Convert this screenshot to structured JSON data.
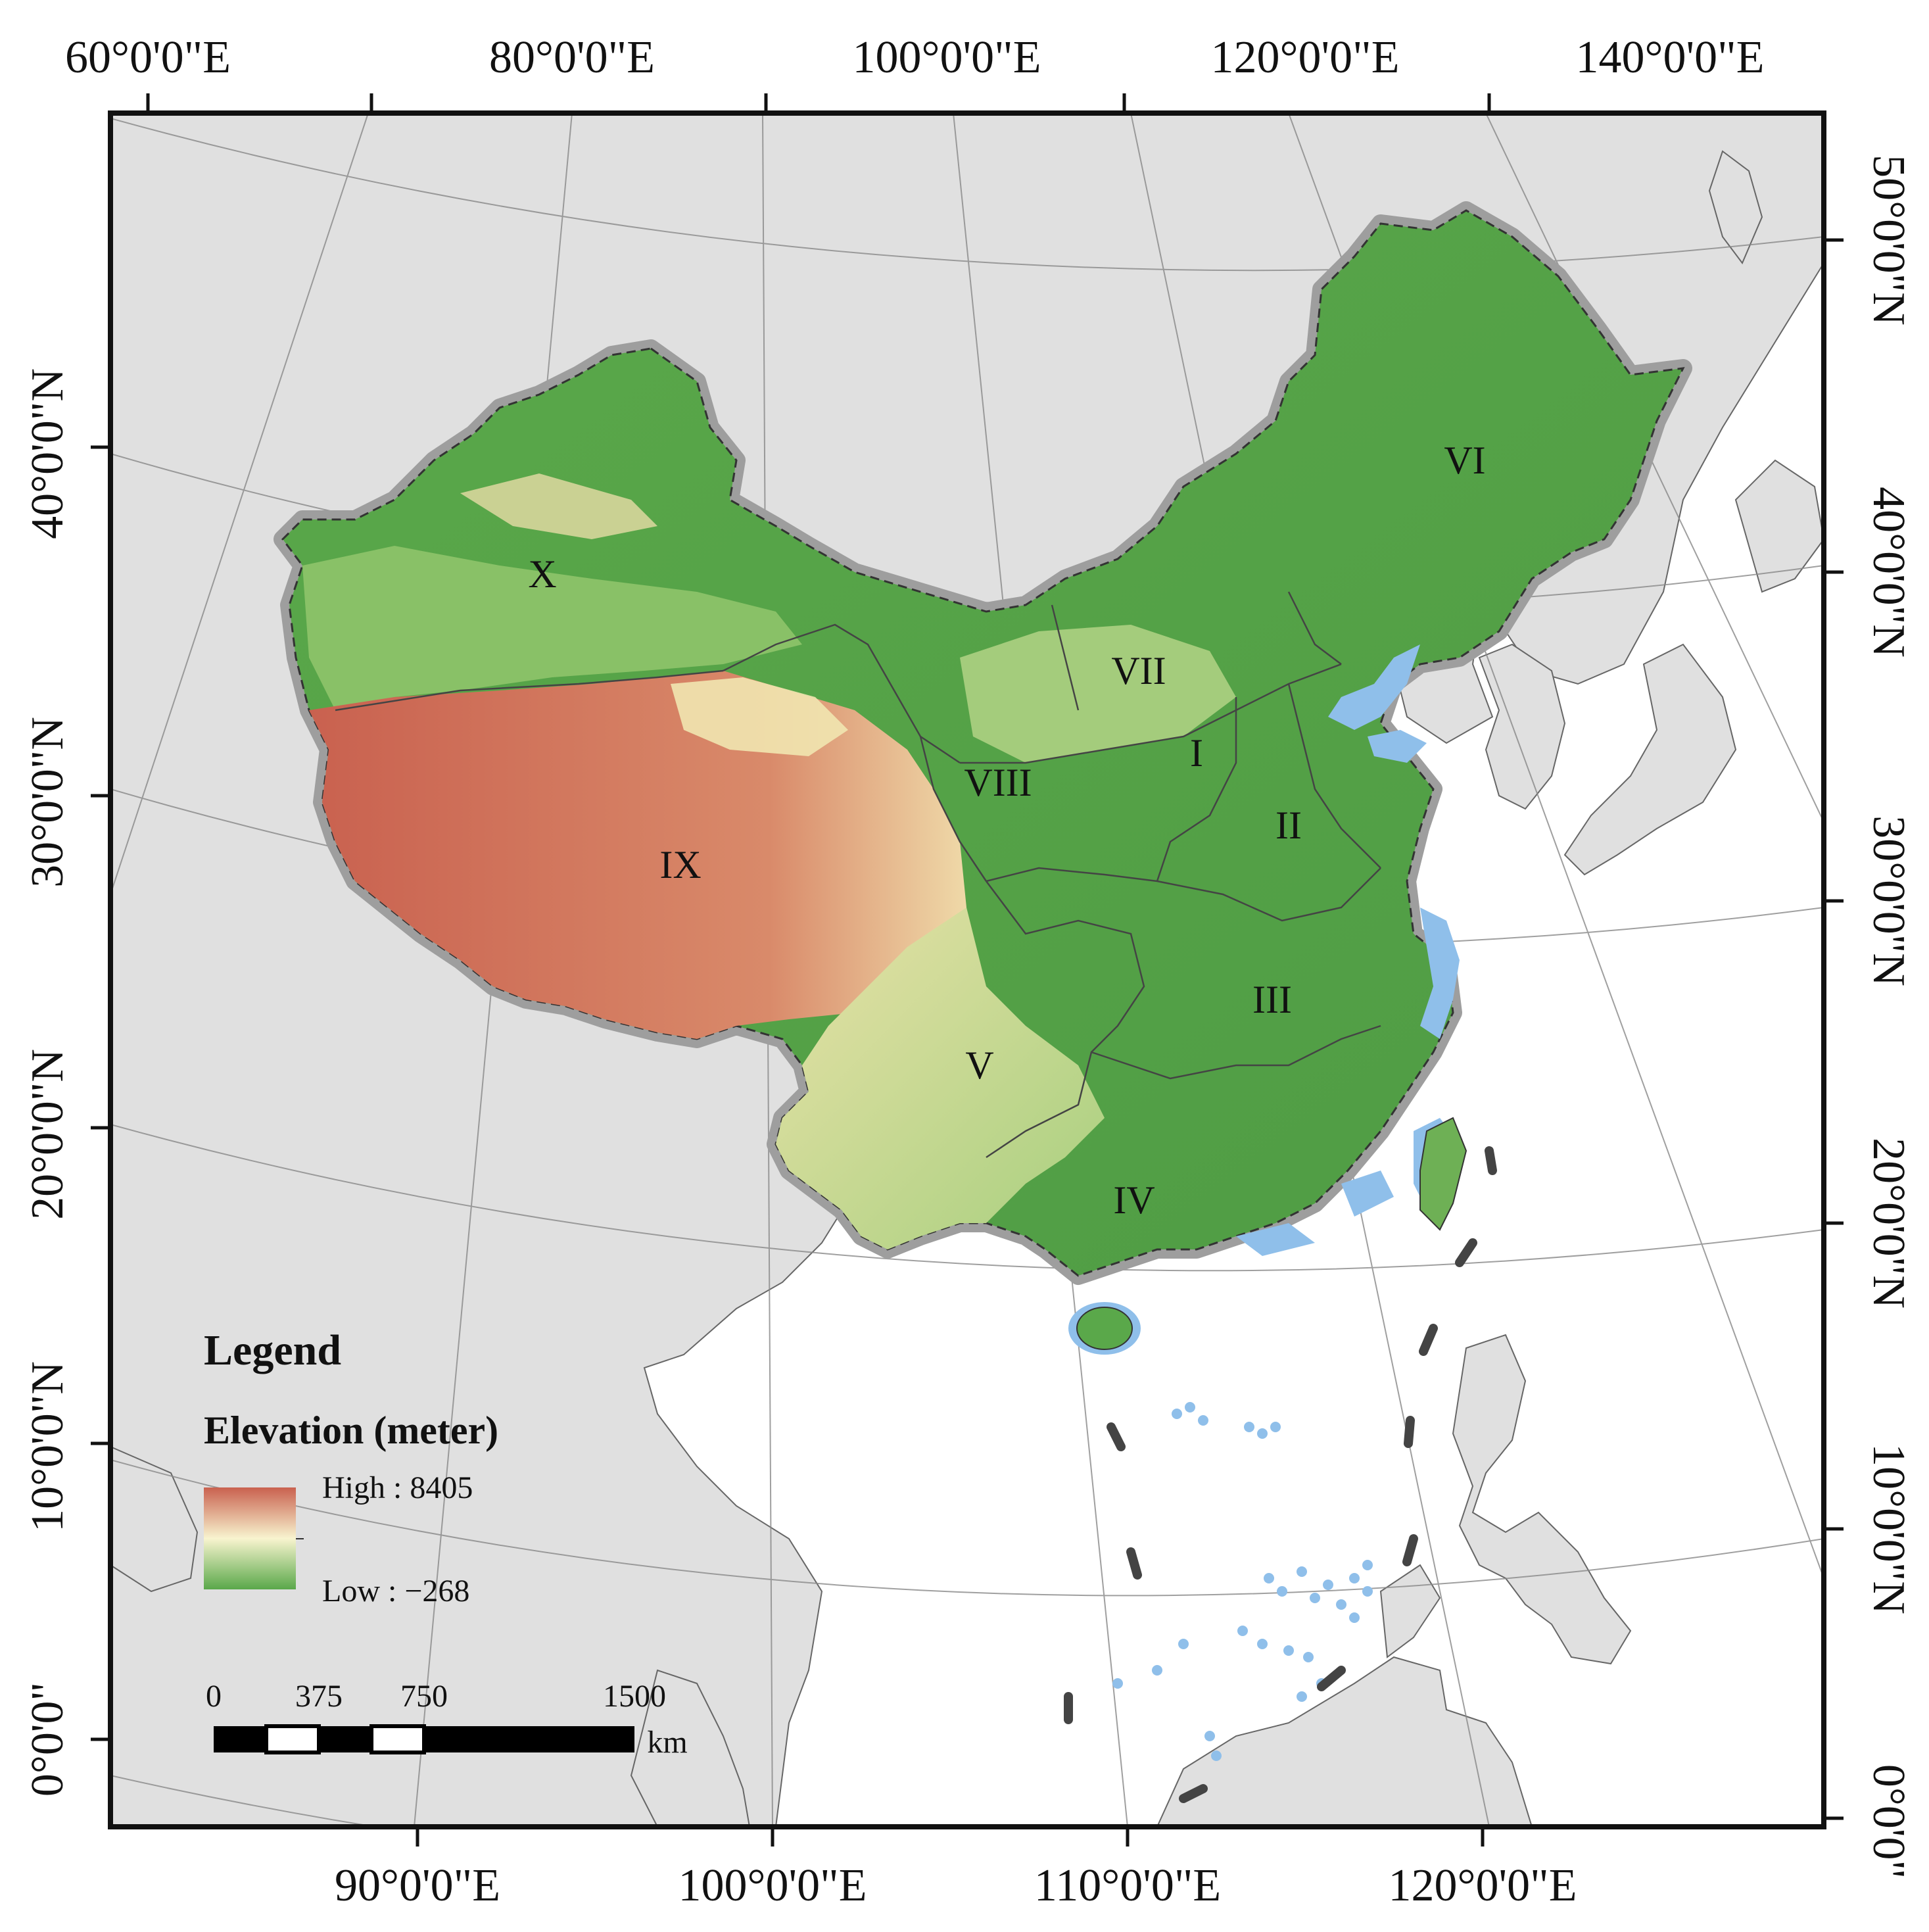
{
  "top_axis_labels": [
    {
      "text": "60°0'0\"E"
    },
    {
      "text": "80°0'0\"E"
    },
    {
      "text": "100°0'0\"E"
    },
    {
      "text": "120°0'0\"E"
    },
    {
      "text": "140°0'0\"E"
    }
  ],
  "bottom_axis_labels": [
    {
      "text": "90°0'0\"E"
    },
    {
      "text": "100°0'0\"E"
    },
    {
      "text": "110°0'0\"E"
    },
    {
      "text": "120°0'0\"E"
    }
  ],
  "left_axis_labels": [
    {
      "text": "40°0'0\"N"
    },
    {
      "text": "30°0'0\"N"
    },
    {
      "text": "20°0'0\"N"
    },
    {
      "text": "10°0'0\"N"
    },
    {
      "text": "0°0'0\""
    }
  ],
  "right_axis_labels": [
    {
      "text": "50°0'0\"N"
    },
    {
      "text": "40°0'0\"N"
    },
    {
      "text": "30°0'0\"N"
    },
    {
      "text": "20°0'0\"N"
    },
    {
      "text": "10°0'0\"N"
    },
    {
      "text": "0°0'0\""
    }
  ],
  "regions": [
    "X",
    "VI",
    "VII",
    "I",
    "VIII",
    "II",
    "IX",
    "III",
    "V",
    "IV"
  ],
  "legend": {
    "title": "Legend",
    "elevation_title": "Elevation (meter)",
    "high_label": "High : 8405",
    "low_label": "Low : −268"
  },
  "scale_bar": {
    "labels": [
      "0",
      "375",
      "750",
      "1500"
    ],
    "unit": "km"
  },
  "colors": {
    "elevation_high": "#c9614f",
    "elevation_mid": "#f4f0c4",
    "elevation_low": "#5aa84a",
    "land_outside": "#e0e0e0",
    "sea": "#ffffff",
    "coast_shelf": "#8fbfea"
  }
}
